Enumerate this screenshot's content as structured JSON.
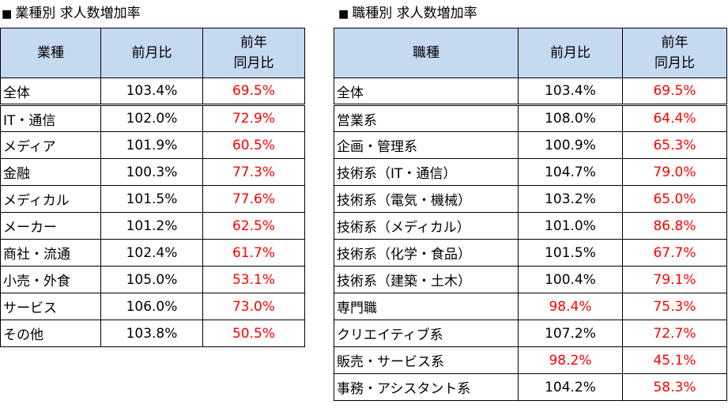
{
  "industry": {
    "title": "業種別 求人数増加率",
    "headers": [
      "業種",
      "前月比",
      "前年\n同月比"
    ],
    "total": {
      "name": "全体",
      "mom": "103.4%",
      "yoy": "69.5%",
      "mom_red": false
    },
    "rows": [
      {
        "name": "IT・通信",
        "mom": "102.0%",
        "yoy": "72.9%",
        "mom_red": false
      },
      {
        "name": "メディア",
        "mom": "101.9%",
        "yoy": "60.5%",
        "mom_red": false
      },
      {
        "name": "金融",
        "mom": "100.3%",
        "yoy": "77.3%",
        "mom_red": false
      },
      {
        "name": "メディカル",
        "mom": "101.5%",
        "yoy": "77.6%",
        "mom_red": false
      },
      {
        "name": "メーカー",
        "mom": "101.2%",
        "yoy": "62.5%",
        "mom_red": false
      },
      {
        "name": "商社・流通",
        "mom": "102.4%",
        "yoy": "61.7%",
        "mom_red": false
      },
      {
        "name": "小売・外食",
        "mom": "105.0%",
        "yoy": "53.1%",
        "mom_red": false
      },
      {
        "name": "サービス",
        "mom": "106.0%",
        "yoy": "73.0%",
        "mom_red": false
      },
      {
        "name": "その他",
        "mom": "103.8%",
        "yoy": "50.5%",
        "mom_red": false
      }
    ]
  },
  "occupation": {
    "title": "職種別 求人数増加率",
    "headers": [
      "職種",
      "前月比",
      "前年\n同月比"
    ],
    "total": {
      "name": "全体",
      "mom": "103.4%",
      "yoy": "69.5%",
      "mom_red": false
    },
    "rows": [
      {
        "name": "営業系",
        "mom": "108.0%",
        "yoy": "64.4%",
        "mom_red": false
      },
      {
        "name": "企画・管理系",
        "mom": "100.9%",
        "yoy": "65.3%",
        "mom_red": false
      },
      {
        "name": "技術系（IT・通信）",
        "mom": "104.7%",
        "yoy": "79.0%",
        "mom_red": false
      },
      {
        "name": "技術系（電気・機械）",
        "mom": "103.2%",
        "yoy": "65.0%",
        "mom_red": false
      },
      {
        "name": "技術系（メディカル）",
        "mom": "101.0%",
        "yoy": "86.8%",
        "mom_red": false
      },
      {
        "name": "技術系（化学・食品）",
        "mom": "101.5%",
        "yoy": "67.7%",
        "mom_red": false
      },
      {
        "name": "技術系（建築・土木）",
        "mom": "100.4%",
        "yoy": "79.1%",
        "mom_red": false
      },
      {
        "name": "専門職",
        "mom": "98.4%",
        "yoy": "75.3%",
        "mom_red": true
      },
      {
        "name": "クリエイティブ系",
        "mom": "107.2%",
        "yoy": "72.7%",
        "mom_red": false
      },
      {
        "name": "販売・サービス系",
        "mom": "98.2%",
        "yoy": "45.1%",
        "mom_red": true
      },
      {
        "name": "事務・アシスタント系",
        "mom": "104.2%",
        "yoy": "58.3%",
        "mom_red": false
      }
    ]
  },
  "colors": {
    "header_bg": "#c5d9f1",
    "negative": "#ff0000"
  },
  "marker": "■"
}
